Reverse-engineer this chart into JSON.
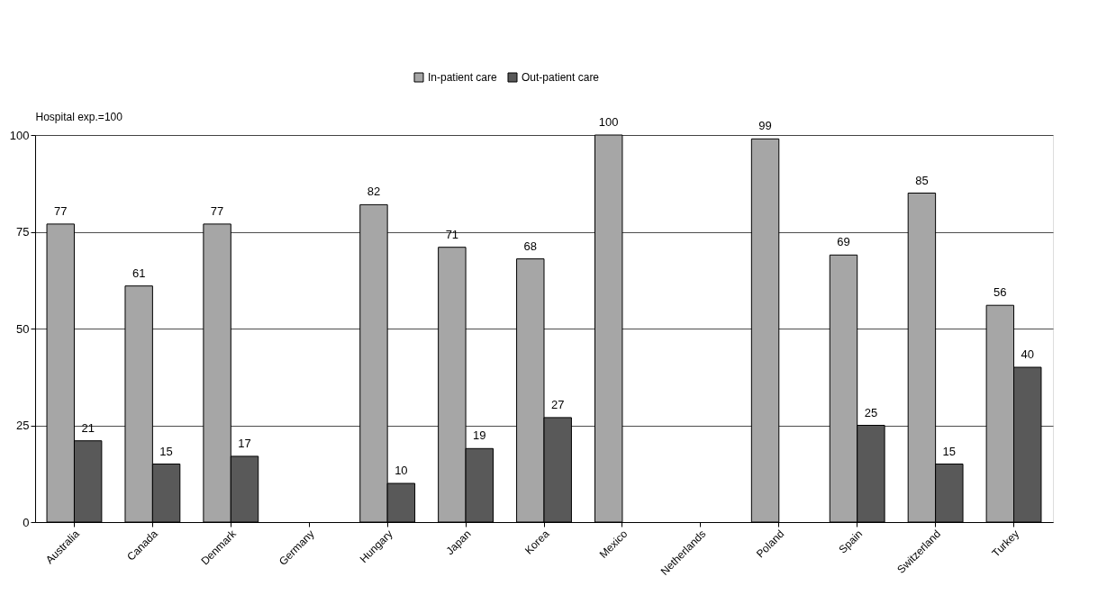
{
  "chart_data": {
    "type": "bar",
    "ylabel": "Hospital exp.=100",
    "categories": [
      "Australia",
      "Canada",
      "Denmark",
      "Germany",
      "Hungary",
      "Japan",
      "Korea",
      "Mexico",
      "Netherlands",
      "Poland",
      "Spain",
      "Switzerland",
      "Turkey"
    ],
    "series": [
      {
        "name": "In-patient care",
        "color": "#a6a6a6",
        "values": [
          77,
          61,
          77,
          null,
          82,
          71,
          68,
          100,
          null,
          99,
          69,
          85,
          56
        ]
      },
      {
        "name": "Out-patient care",
        "color": "#595959",
        "values": [
          21,
          15,
          17,
          null,
          10,
          19,
          27,
          null,
          null,
          null,
          25,
          15,
          40
        ]
      }
    ],
    "ylim": [
      0,
      100
    ],
    "yticks": [
      0,
      25,
      50,
      75,
      100
    ],
    "grid": "y",
    "legend": "top",
    "data_labels": true
  }
}
